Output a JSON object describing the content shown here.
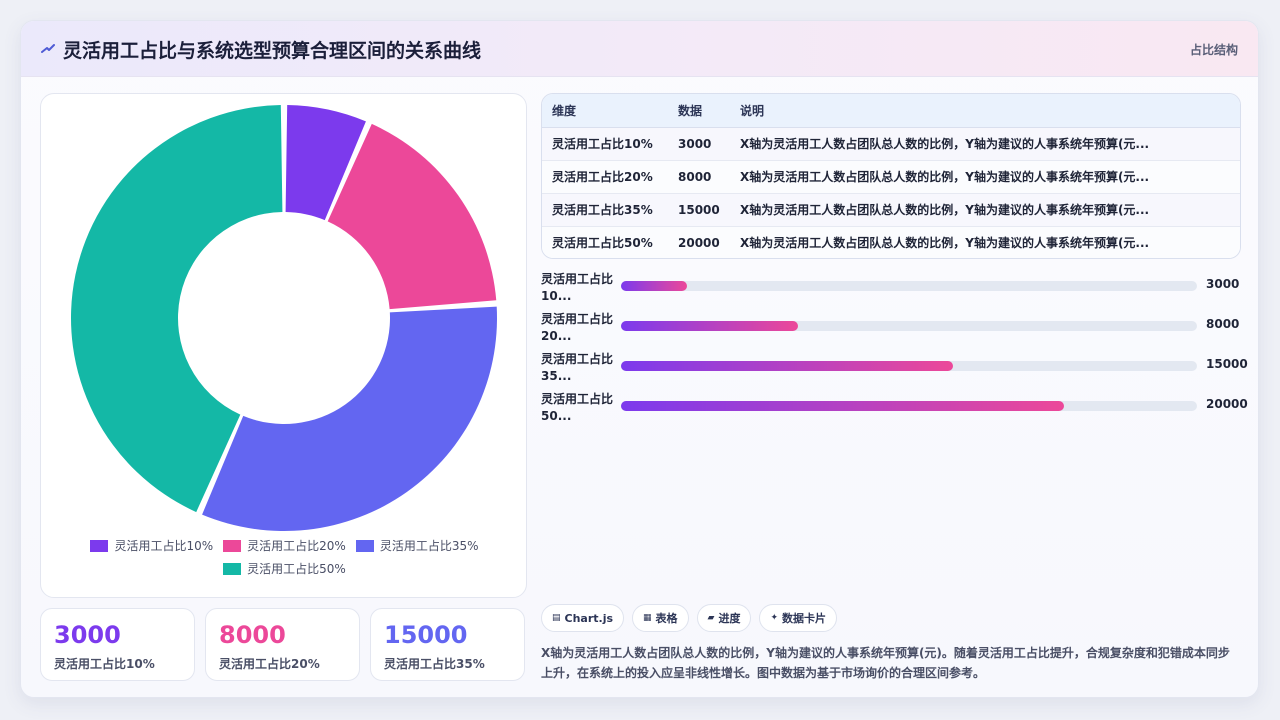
{
  "header": {
    "title": "灵活用工占比与系统选型预算合理区间的关系曲线",
    "section_tag": "占比结构"
  },
  "chart_data": {
    "type": "pie",
    "categories": [
      "灵活用工占比10%",
      "灵活用工占比20%",
      "灵活用工占比35%",
      "灵活用工占比50%"
    ],
    "values": [
      3000,
      8000,
      15000,
      20000
    ],
    "colors": [
      "#7c3aed",
      "#ec4899",
      "#6366f1",
      "#14b8a6"
    ],
    "legend_position": "bottom"
  },
  "kpis": [
    {
      "value": "3000",
      "label": "灵活用工占比10%",
      "color": "#7c3aed"
    },
    {
      "value": "8000",
      "label": "灵活用工占比20%",
      "color": "#ec4899"
    },
    {
      "value": "15000",
      "label": "灵活用工占比35%",
      "color": "#6366f1"
    }
  ],
  "table": {
    "headers": [
      "维度",
      "数据",
      "说明"
    ],
    "rows": [
      [
        "灵活用工占比10%",
        "3000",
        "X轴为灵活用工人数占团队总人数的比例，Y轴为建议的人事系统年预算(元..."
      ],
      [
        "灵活用工占比20%",
        "8000",
        "X轴为灵活用工人数占团队总人数的比例，Y轴为建议的人事系统年预算(元..."
      ],
      [
        "灵活用工占比35%",
        "15000",
        "X轴为灵活用工人数占团队总人数的比例，Y轴为建议的人事系统年预算(元..."
      ],
      [
        "灵活用工占比50%",
        "20000",
        "X轴为灵活用工人数占团队总人数的比例，Y轴为建议的人事系统年预算(元..."
      ]
    ]
  },
  "progress": {
    "items": [
      {
        "label": "灵活用工占比10...",
        "value": "3000",
        "fraction": 0.115
      },
      {
        "label": "灵活用工占比20...",
        "value": "8000",
        "fraction": 0.308
      },
      {
        "label": "灵活用工占比35...",
        "value": "15000",
        "fraction": 0.577
      },
      {
        "label": "灵活用工占比50...",
        "value": "20000",
        "fraction": 0.769
      }
    ]
  },
  "chips": [
    {
      "icon": "▤",
      "label": "Chart.js"
    },
    {
      "icon": "▦",
      "label": "表格"
    },
    {
      "icon": "▰",
      "label": "进度"
    },
    {
      "icon": "✦",
      "label": "数据卡片"
    }
  ],
  "description": "X轴为灵活用工人数占团队总人数的比例，Y轴为建议的人事系统年预算(元)。随着灵活用工占比提升，合规复杂度和犯错成本同步上升，在系统上的投入应呈非线性增长。图中数据为基于市场询价的合理区间参考。"
}
